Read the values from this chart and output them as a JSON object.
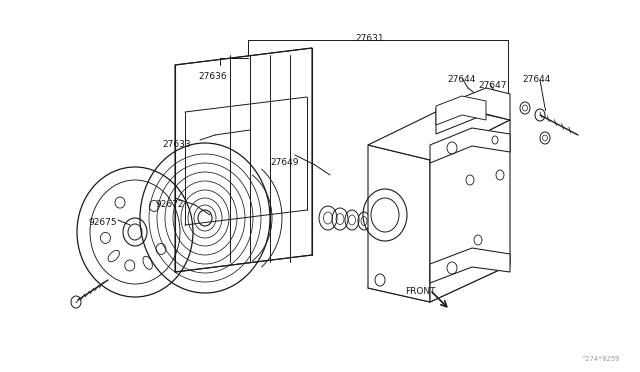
{
  "bg_color": "#ffffff",
  "line_color": "#1a1a1a",
  "label_color": "#1a1a1a",
  "fig_width": 6.4,
  "fig_height": 3.72,
  "dpi": 100,
  "watermark": "^274*0259",
  "front_label": "FRONT"
}
